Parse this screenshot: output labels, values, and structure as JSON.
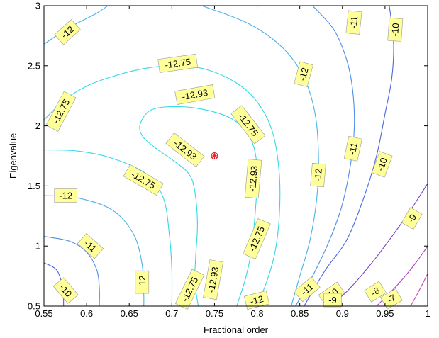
{
  "chart_data": {
    "type": "contour",
    "xlabel": "Fractional order",
    "ylabel": "Eigenvalue",
    "xlim": [
      0.55,
      1.0
    ],
    "ylim": [
      0.5,
      3.0
    ],
    "xticks": [
      0.55,
      0.6,
      0.65,
      0.7,
      0.75,
      0.8,
      0.85,
      0.9,
      0.95,
      1.0
    ],
    "xtick_labels": [
      "0.55",
      "0.6",
      "0.65",
      "0.7",
      "0.75",
      "0.8",
      "0.85",
      "0.9",
      "0.95",
      "1"
    ],
    "yticks": [
      0.5,
      1.0,
      1.5,
      2.0,
      2.5,
      3.0
    ],
    "ytick_labels": [
      "0.5",
      "1",
      "1.5",
      "2",
      "2.5",
      "3"
    ],
    "grid": false,
    "levels": [
      {
        "value": -12.93,
        "color": "#33d9e6"
      },
      {
        "value": -12.75,
        "color": "#33d9e6"
      },
      {
        "value": -12,
        "color": "#4ab3e6"
      },
      {
        "value": -11,
        "color": "#4f8ee6"
      },
      {
        "value": -10,
        "color": "#4a66e0"
      },
      {
        "value": -9,
        "color": "#7a3fd6"
      },
      {
        "value": -8,
        "color": "#b13fc8"
      },
      {
        "value": -7,
        "color": "#d23fbf"
      }
    ],
    "contours": [
      {
        "level": "-12.93",
        "color": "#33d9e6",
        "points": [
          [
            0.731,
            0.5
          ],
          [
            0.727,
            0.7
          ],
          [
            0.728,
            0.92
          ],
          [
            0.73,
            1.18
          ],
          [
            0.727,
            1.45
          ],
          [
            0.72,
            1.6
          ],
          [
            0.7,
            1.72
          ],
          [
            0.68,
            1.82
          ],
          [
            0.665,
            1.92
          ],
          [
            0.663,
            2.02
          ],
          [
            0.675,
            2.13
          ],
          [
            0.7,
            2.16
          ],
          [
            0.735,
            2.14
          ],
          [
            0.77,
            2.06
          ],
          [
            0.792,
            1.9
          ],
          [
            0.8,
            1.65
          ],
          [
            0.798,
            1.3
          ],
          [
            0.793,
            0.95
          ],
          [
            0.786,
            0.72
          ],
          [
            0.776,
            0.5
          ]
        ]
      },
      {
        "level": "-12.75",
        "color": "#33d9e6",
        "points": [
          [
            0.55,
            2.05
          ],
          [
            0.575,
            2.22
          ],
          [
            0.6,
            2.33
          ],
          [
            0.63,
            2.41
          ],
          [
            0.67,
            2.48
          ],
          [
            0.705,
            2.5
          ],
          [
            0.74,
            2.47
          ],
          [
            0.775,
            2.36
          ],
          [
            0.8,
            2.2
          ],
          [
            0.818,
            1.95
          ],
          [
            0.826,
            1.6
          ],
          [
            0.826,
            1.25
          ],
          [
            0.821,
            0.95
          ],
          [
            0.812,
            0.72
          ],
          [
            0.8,
            0.5
          ]
        ]
      },
      {
        "level": "-12.75",
        "color": "#33d9e6",
        "points": [
          [
            0.55,
            1.8
          ],
          [
            0.59,
            1.79
          ],
          [
            0.63,
            1.73
          ],
          [
            0.67,
            1.6
          ],
          [
            0.69,
            1.4
          ],
          [
            0.697,
            1.1
          ],
          [
            0.7,
            0.8
          ],
          [
            0.7,
            0.5
          ]
        ]
      },
      {
        "level": "-12",
        "color": "#4ab3e6",
        "points": [
          [
            0.55,
            2.68
          ],
          [
            0.58,
            2.82
          ],
          [
            0.61,
            2.93
          ],
          [
            0.625,
            3.0
          ]
        ]
      },
      {
        "level": "-12",
        "color": "#4ab3e6",
        "points": [
          [
            0.735,
            3.0
          ],
          [
            0.79,
            2.85
          ],
          [
            0.83,
            2.65
          ],
          [
            0.855,
            2.4
          ],
          [
            0.868,
            2.1
          ],
          [
            0.872,
            1.75
          ],
          [
            0.87,
            1.4
          ],
          [
            0.862,
            1.05
          ],
          [
            0.85,
            0.75
          ],
          [
            0.84,
            0.5
          ]
        ]
      },
      {
        "level": "-12",
        "color": "#4ab3e6",
        "points": [
          [
            0.55,
            1.42
          ],
          [
            0.59,
            1.4
          ],
          [
            0.63,
            1.3
          ],
          [
            0.655,
            1.1
          ],
          [
            0.665,
            0.85
          ],
          [
            0.667,
            0.6
          ],
          [
            0.667,
            0.5
          ]
        ]
      },
      {
        "level": "-11",
        "color": "#4f8ee6",
        "points": [
          [
            0.865,
            3.0
          ],
          [
            0.89,
            2.8
          ],
          [
            0.905,
            2.55
          ],
          [
            0.912,
            2.3
          ],
          [
            0.914,
            2.0
          ],
          [
            0.91,
            1.7
          ],
          [
            0.9,
            1.35
          ],
          [
            0.885,
            1.05
          ],
          [
            0.865,
            0.75
          ],
          [
            0.845,
            0.5
          ]
        ]
      },
      {
        "level": "-11",
        "color": "#4f8ee6",
        "points": [
          [
            0.55,
            1.08
          ],
          [
            0.58,
            1.04
          ],
          [
            0.6,
            0.95
          ],
          [
            0.612,
            0.8
          ],
          [
            0.615,
            0.65
          ],
          [
            0.615,
            0.5
          ]
        ]
      },
      {
        "level": "-10",
        "color": "#4a66e0",
        "points": [
          [
            0.955,
            3.0
          ],
          [
            0.96,
            2.7
          ],
          [
            0.958,
            2.4
          ],
          [
            0.95,
            2.1
          ],
          [
            0.94,
            1.75
          ],
          [
            0.925,
            1.4
          ],
          [
            0.905,
            1.05
          ],
          [
            0.88,
            0.8
          ],
          [
            0.855,
            0.5
          ]
        ]
      },
      {
        "level": "-10",
        "color": "#4a66e0",
        "points": [
          [
            0.55,
            0.86
          ],
          [
            0.565,
            0.8
          ],
          [
            0.572,
            0.65
          ],
          [
            0.573,
            0.5
          ]
        ]
      },
      {
        "level": "-9",
        "color": "#7a3fd6",
        "points": [
          [
            1.0,
            1.52
          ],
          [
            0.98,
            1.3
          ],
          [
            0.955,
            1.05
          ],
          [
            0.93,
            0.82
          ],
          [
            0.905,
            0.62
          ],
          [
            0.885,
            0.5
          ]
        ]
      },
      {
        "level": "-8",
        "color": "#b13fc8",
        "points": [
          [
            1.0,
            1.0
          ],
          [
            0.985,
            0.85
          ],
          [
            0.965,
            0.68
          ],
          [
            0.94,
            0.5
          ]
        ]
      },
      {
        "level": "-7",
        "color": "#d23fbf",
        "points": [
          [
            1.0,
            0.77
          ],
          [
            0.99,
            0.63
          ],
          [
            0.98,
            0.5
          ]
        ]
      }
    ],
    "contour_labels": [
      {
        "text": "-12",
        "x": 0.5775,
        "y": 2.78,
        "angle": -42
      },
      {
        "text": "-12.75",
        "x": 0.707,
        "y": 2.52,
        "angle": -8
      },
      {
        "text": "-12.75",
        "x": 0.57,
        "y": 2.12,
        "angle": -62
      },
      {
        "text": "-12.93",
        "x": 0.727,
        "y": 2.26,
        "angle": -10
      },
      {
        "text": "-12.75",
        "x": 0.7895,
        "y": 2.01,
        "angle": 52
      },
      {
        "text": "-12.93",
        "x": 0.7155,
        "y": 1.8,
        "angle": 38
      },
      {
        "text": "-12.75",
        "x": 0.6665,
        "y": 1.55,
        "angle": 30
      },
      {
        "text": "-12.93",
        "x": 0.7955,
        "y": 1.56,
        "angle": -85
      },
      {
        "text": "-12",
        "x": 0.5755,
        "y": 1.42,
        "angle": 0
      },
      {
        "text": "-12.75",
        "x": 0.7995,
        "y": 1.06,
        "angle": -67
      },
      {
        "text": "-11",
        "x": 0.6045,
        "y": 1.0,
        "angle": 42
      },
      {
        "text": "-12",
        "x": 0.665,
        "y": 0.7,
        "angle": -90
      },
      {
        "text": "-12.75",
        "x": 0.721,
        "y": 0.64,
        "angle": -64
      },
      {
        "text": "-12.93",
        "x": 0.7485,
        "y": 0.72,
        "angle": -80
      },
      {
        "text": "-10",
        "x": 0.5755,
        "y": 0.63,
        "angle": 50
      },
      {
        "text": "-12",
        "x": 0.7995,
        "y": 0.55,
        "angle": -14
      },
      {
        "text": "-11",
        "x": 0.8585,
        "y": 0.64,
        "angle": -40
      },
      {
        "text": "-10",
        "x": 0.8875,
        "y": 0.6,
        "angle": -35
      },
      {
        "text": "-9",
        "x": 0.8885,
        "y": 0.55,
        "angle": 0
      },
      {
        "text": "-8",
        "x": 0.9385,
        "y": 0.62,
        "angle": -32
      },
      {
        "text": "-7",
        "x": 0.9575,
        "y": 0.56,
        "angle": -30
      },
      {
        "text": "-12",
        "x": 0.8545,
        "y": 2.43,
        "angle": -75
      },
      {
        "text": "-11",
        "x": 0.9135,
        "y": 2.86,
        "angle": -84
      },
      {
        "text": "-10",
        "x": 0.962,
        "y": 2.8,
        "angle": -86
      },
      {
        "text": "-12",
        "x": 0.8715,
        "y": 1.59,
        "angle": -85
      },
      {
        "text": "-11",
        "x": 0.9125,
        "y": 1.81,
        "angle": -78
      },
      {
        "text": "-10",
        "x": 0.9465,
        "y": 1.68,
        "angle": -70
      },
      {
        "text": "-9",
        "x": 0.9815,
        "y": 1.23,
        "angle": -60
      }
    ],
    "marker": {
      "x": 0.75,
      "y": 1.75,
      "color": "#e8202a",
      "symbol": "circle-cross"
    }
  }
}
